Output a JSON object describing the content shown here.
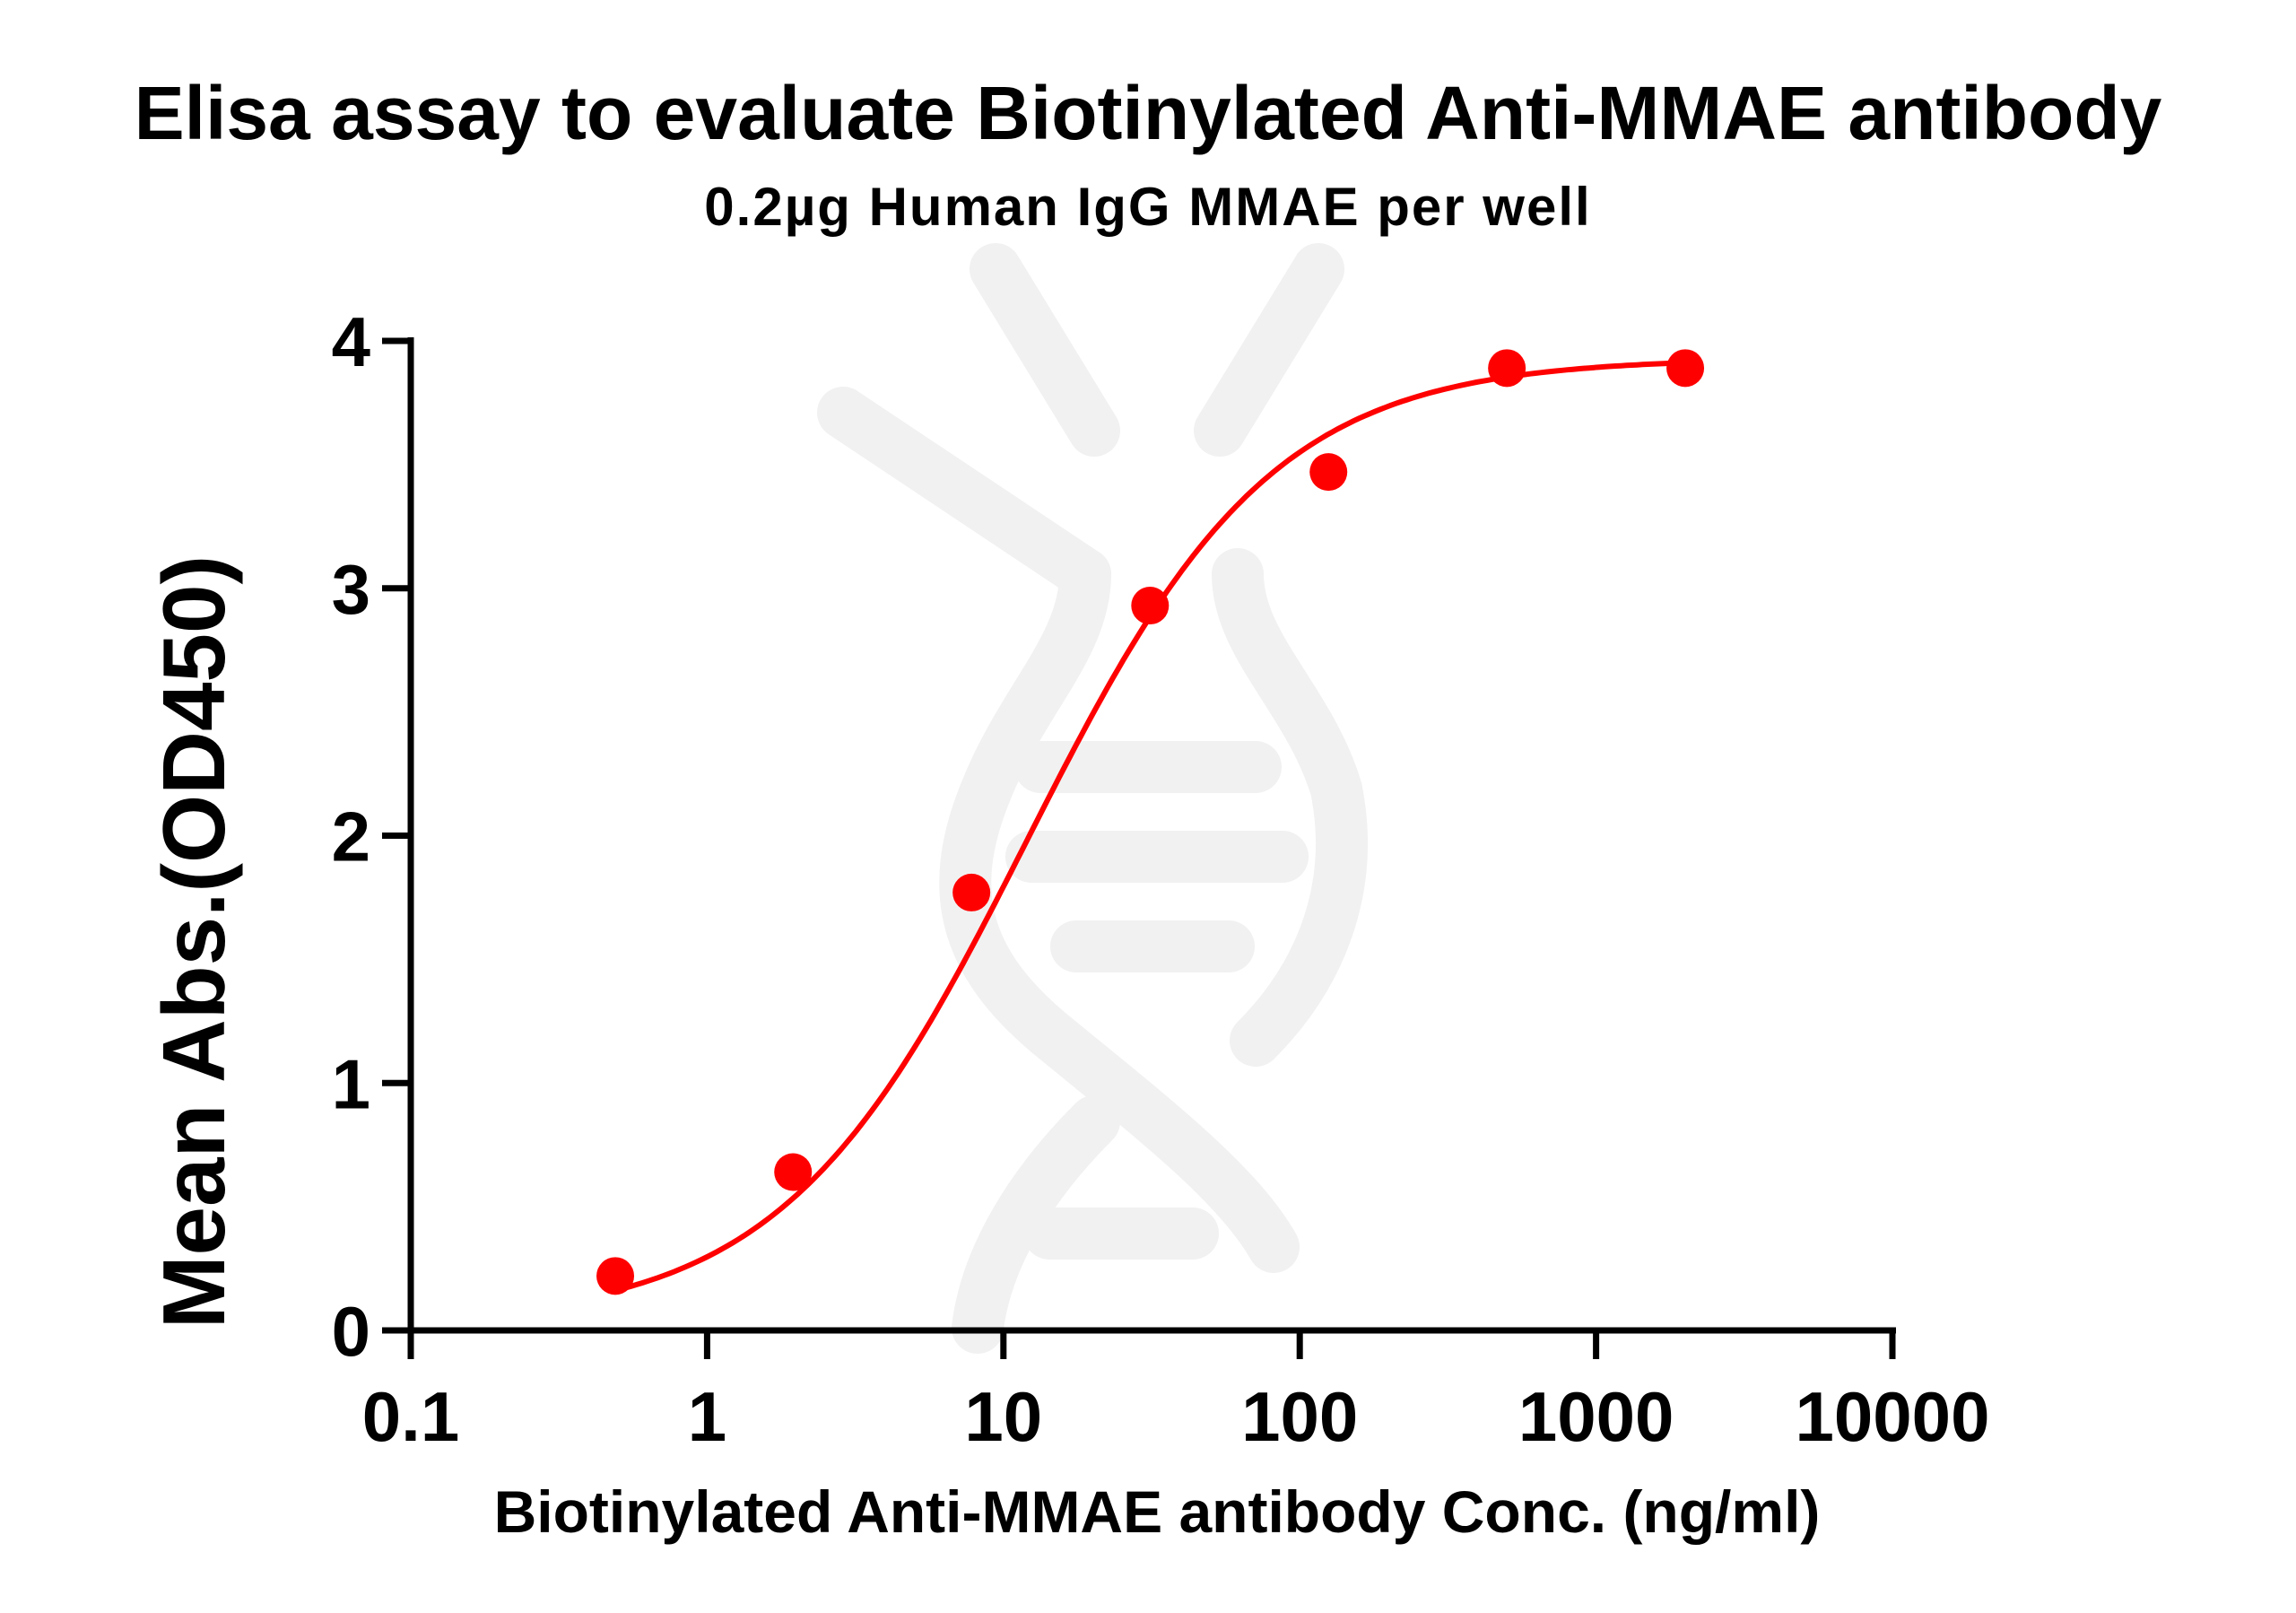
{
  "chart_data": {
    "type": "scatter",
    "title": "Elisa assay to evaluate Biotinylated Anti-MMAE antibody",
    "subtitle": "0.2µg Human IgG MMAE per well",
    "xlabel": "Biotinylated Anti-MMAE antibody Conc. (ng/ml)",
    "ylabel": "Mean Abs.(OD450)",
    "x_scale": "log",
    "xlim": [
      0.1,
      10000
    ],
    "ylim": [
      0,
      4
    ],
    "x_ticks": [
      0.1,
      1,
      10,
      100,
      1000,
      10000
    ],
    "x_tick_labels": [
      "0.1",
      "1",
      "10",
      "100",
      "1000",
      "10000"
    ],
    "y_ticks": [
      0,
      1,
      2,
      3,
      4
    ],
    "y_tick_labels": [
      "0",
      "1",
      "2",
      "3",
      "4"
    ],
    "grid": false,
    "series": [
      {
        "x": [
          0.49,
          1.95,
          7.8,
          31.25,
          125,
          500,
          2000
        ],
        "y": [
          0.22,
          0.64,
          1.77,
          2.93,
          3.47,
          3.89,
          3.89
        ],
        "color": "#ff0000",
        "fit": "4PL sigmoid curve"
      }
    ],
    "watermark": "dna-helix-icon"
  }
}
